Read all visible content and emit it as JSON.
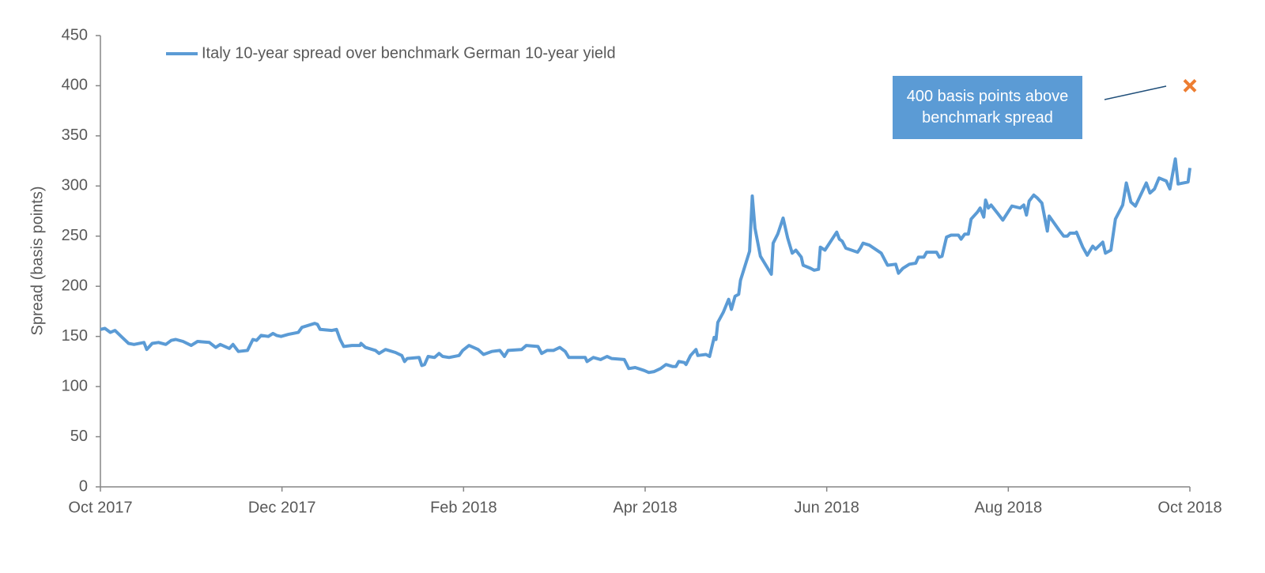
{
  "chart_data": {
    "type": "line",
    "y_label": "Spread (basis points)",
    "series": [
      {
        "name": "Italy 10-year spread over benchmark German 10-year yield",
        "color": "#5b9bd5",
        "x": [
          0.0,
          0.05,
          0.11,
          0.16,
          0.24,
          0.31,
          0.37,
          0.48,
          0.51,
          0.57,
          0.64,
          0.72,
          0.78,
          0.83,
          0.91,
          1.0,
          1.07,
          1.2,
          1.27,
          1.32,
          1.42,
          1.46,
          1.52,
          1.62,
          1.68,
          1.72,
          1.77,
          1.85,
          1.9,
          1.94,
          1.99,
          2.07,
          2.18,
          2.22,
          2.29,
          2.36,
          2.39,
          2.42,
          2.55,
          2.6,
          2.64,
          2.68,
          2.77,
          2.86,
          2.87,
          2.92,
          3.03,
          3.07,
          3.14,
          3.25,
          3.32,
          3.35,
          3.38,
          3.51,
          3.54,
          3.57,
          3.61,
          3.68,
          3.73,
          3.77,
          3.84,
          3.95,
          3.99,
          4.06,
          4.16,
          4.22,
          4.31,
          4.4,
          4.45,
          4.49,
          4.64,
          4.69,
          4.82,
          4.86,
          4.92,
          4.99,
          5.06,
          5.12,
          5.16,
          5.34,
          5.36,
          5.43,
          5.51,
          5.58,
          5.63,
          5.77,
          5.82,
          5.89,
          5.99,
          6.04,
          6.1,
          6.17,
          6.23,
          6.3,
          6.34,
          6.37,
          6.43,
          6.45,
          6.5,
          6.56,
          6.58,
          6.67,
          6.71,
          6.76,
          6.78,
          6.8,
          6.86,
          6.92,
          6.95,
          6.99,
          7.03,
          7.05,
          7.15,
          7.18,
          7.21,
          7.27,
          7.39,
          7.41,
          7.46,
          7.52,
          7.57,
          7.62,
          7.66,
          7.72,
          7.74,
          7.82,
          7.86,
          7.91,
          7.93,
          7.98,
          8.11,
          8.14,
          8.17,
          8.21,
          8.34,
          8.37,
          8.4,
          8.47,
          8.6,
          8.67,
          8.76,
          8.79,
          8.84,
          8.91,
          8.98,
          9.01,
          9.07,
          9.1,
          9.21,
          9.24,
          9.27,
          9.32,
          9.37,
          9.45,
          9.48,
          9.52,
          9.56,
          9.59,
          9.66,
          9.69,
          9.73,
          9.75,
          9.78,
          9.81,
          9.88,
          9.94,
          10.04,
          10.13,
          10.17,
          10.2,
          10.23,
          10.28,
          10.32,
          10.37,
          10.43,
          10.45,
          10.56,
          10.61,
          10.65,
          10.68,
          10.74,
          10.75,
          10.82,
          10.87,
          10.93,
          10.96,
          11.04,
          11.07,
          11.13,
          11.18,
          11.26,
          11.3,
          11.35,
          11.4,
          11.52,
          11.56,
          11.61,
          11.66,
          11.74,
          11.78,
          11.84,
          11.87,
          11.98,
          12.0
        ],
        "values": [
          157,
          158,
          154,
          156,
          149,
          143,
          142,
          144,
          137,
          143,
          144,
          142,
          146,
          147,
          145,
          141,
          145,
          144,
          139,
          142,
          138,
          142,
          135,
          136,
          147,
          146,
          151,
          150,
          153,
          151,
          150,
          152,
          154,
          159,
          161,
          163,
          162,
          157,
          156,
          157,
          147,
          140,
          141,
          141,
          143,
          139,
          136,
          133,
          137,
          134,
          131,
          125,
          128,
          129,
          121,
          122,
          130,
          129,
          133,
          130,
          129,
          131,
          136,
          141,
          137,
          132,
          135,
          136,
          130,
          136,
          137,
          141,
          140,
          133,
          136,
          136,
          139,
          135,
          129,
          129,
          125,
          129,
          127,
          130,
          128,
          127,
          118,
          119,
          116,
          114,
          115,
          118,
          122,
          120,
          120,
          125,
          124,
          122,
          131,
          137,
          131,
          132,
          130,
          149,
          147,
          164,
          174,
          187,
          177,
          190,
          192,
          206,
          235,
          290,
          258,
          230,
          212,
          243,
          252,
          268,
          248,
          233,
          236,
          229,
          221,
          218,
          216,
          217,
          239,
          236,
          254,
          247,
          245,
          238,
          234,
          238,
          243,
          241,
          233,
          221,
          222,
          213,
          218,
          222,
          223,
          229,
          229,
          234,
          234,
          229,
          230,
          249,
          251,
          251,
          247,
          252,
          252,
          267,
          274,
          278,
          269,
          286,
          278,
          281,
          273,
          266,
          280,
          278,
          281,
          271,
          285,
          291,
          288,
          283,
          255,
          270,
          256,
          250,
          250,
          253,
          253,
          254,
          239,
          231,
          240,
          237,
          244,
          233,
          236,
          267,
          281,
          303,
          284,
          280,
          303,
          293,
          297,
          308,
          305,
          297,
          327,
          302,
          304,
          318
        ]
      }
    ],
    "annotation": {
      "text": "400 basis points above benchmark spread",
      "x": 12,
      "y": 400,
      "color": "#ed7d31"
    },
    "xlim": [
      0,
      12
    ],
    "xticks": [
      {
        "value": 0,
        "label": "Oct 2017"
      },
      {
        "value": 2,
        "label": "Dec 2017"
      },
      {
        "value": 4,
        "label": "Feb 2018"
      },
      {
        "value": 6,
        "label": "Apr 2018"
      },
      {
        "value": 8,
        "label": "Jun 2018"
      },
      {
        "value": 10,
        "label": "Aug 2018"
      },
      {
        "value": 12,
        "label": "Oct 2018"
      }
    ],
    "ylim": [
      0,
      450
    ],
    "yticks": [
      0,
      50,
      100,
      150,
      200,
      250,
      300,
      350,
      400,
      450
    ],
    "grid": false,
    "legend": "top-left"
  }
}
